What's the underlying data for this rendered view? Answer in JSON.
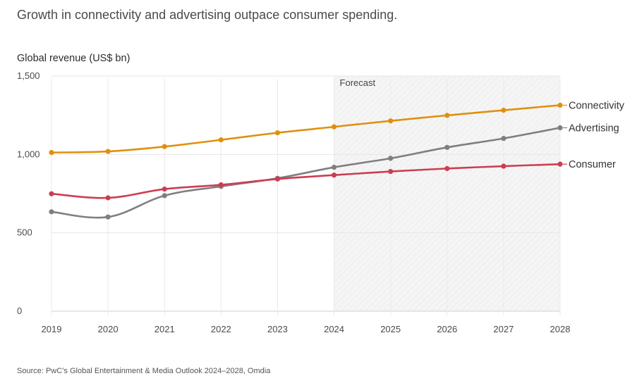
{
  "title": "Growth in connectivity and advertising outpace consumer spending.",
  "source": "Source: PwC’s Global Entertainment & Media Outlook 2024–2028, Omdia",
  "chart_data": {
    "type": "line",
    "ylabel": "Global revenue (US$ bn)",
    "xlabel": "",
    "x": [
      "2019",
      "2020",
      "2021",
      "2022",
      "2023",
      "2024",
      "2025",
      "2026",
      "2027",
      "2028"
    ],
    "ylim": [
      0,
      1500
    ],
    "yticks": [
      0,
      500,
      1000,
      1500
    ],
    "ytick_labels": [
      "0",
      "500",
      "1,000",
      "1,500"
    ],
    "grid": "horizontal",
    "forecast": {
      "label": "Forecast",
      "from": "2024",
      "to": "2028"
    },
    "series": [
      {
        "name": "Connectivity",
        "color": "#e0900f",
        "values": [
          1012,
          1019,
          1050,
          1093,
          1138,
          1176,
          1214,
          1249,
          1282,
          1314
        ]
      },
      {
        "name": "Advertising",
        "color": "#7f7f7f",
        "values": [
          634,
          601,
          737,
          796,
          848,
          918,
          975,
          1045,
          1102,
          1170
        ]
      },
      {
        "name": "Consumer",
        "color": "#cc3d52",
        "values": [
          749,
          723,
          779,
          806,
          843,
          868,
          891,
          910,
          925,
          938
        ]
      }
    ]
  }
}
